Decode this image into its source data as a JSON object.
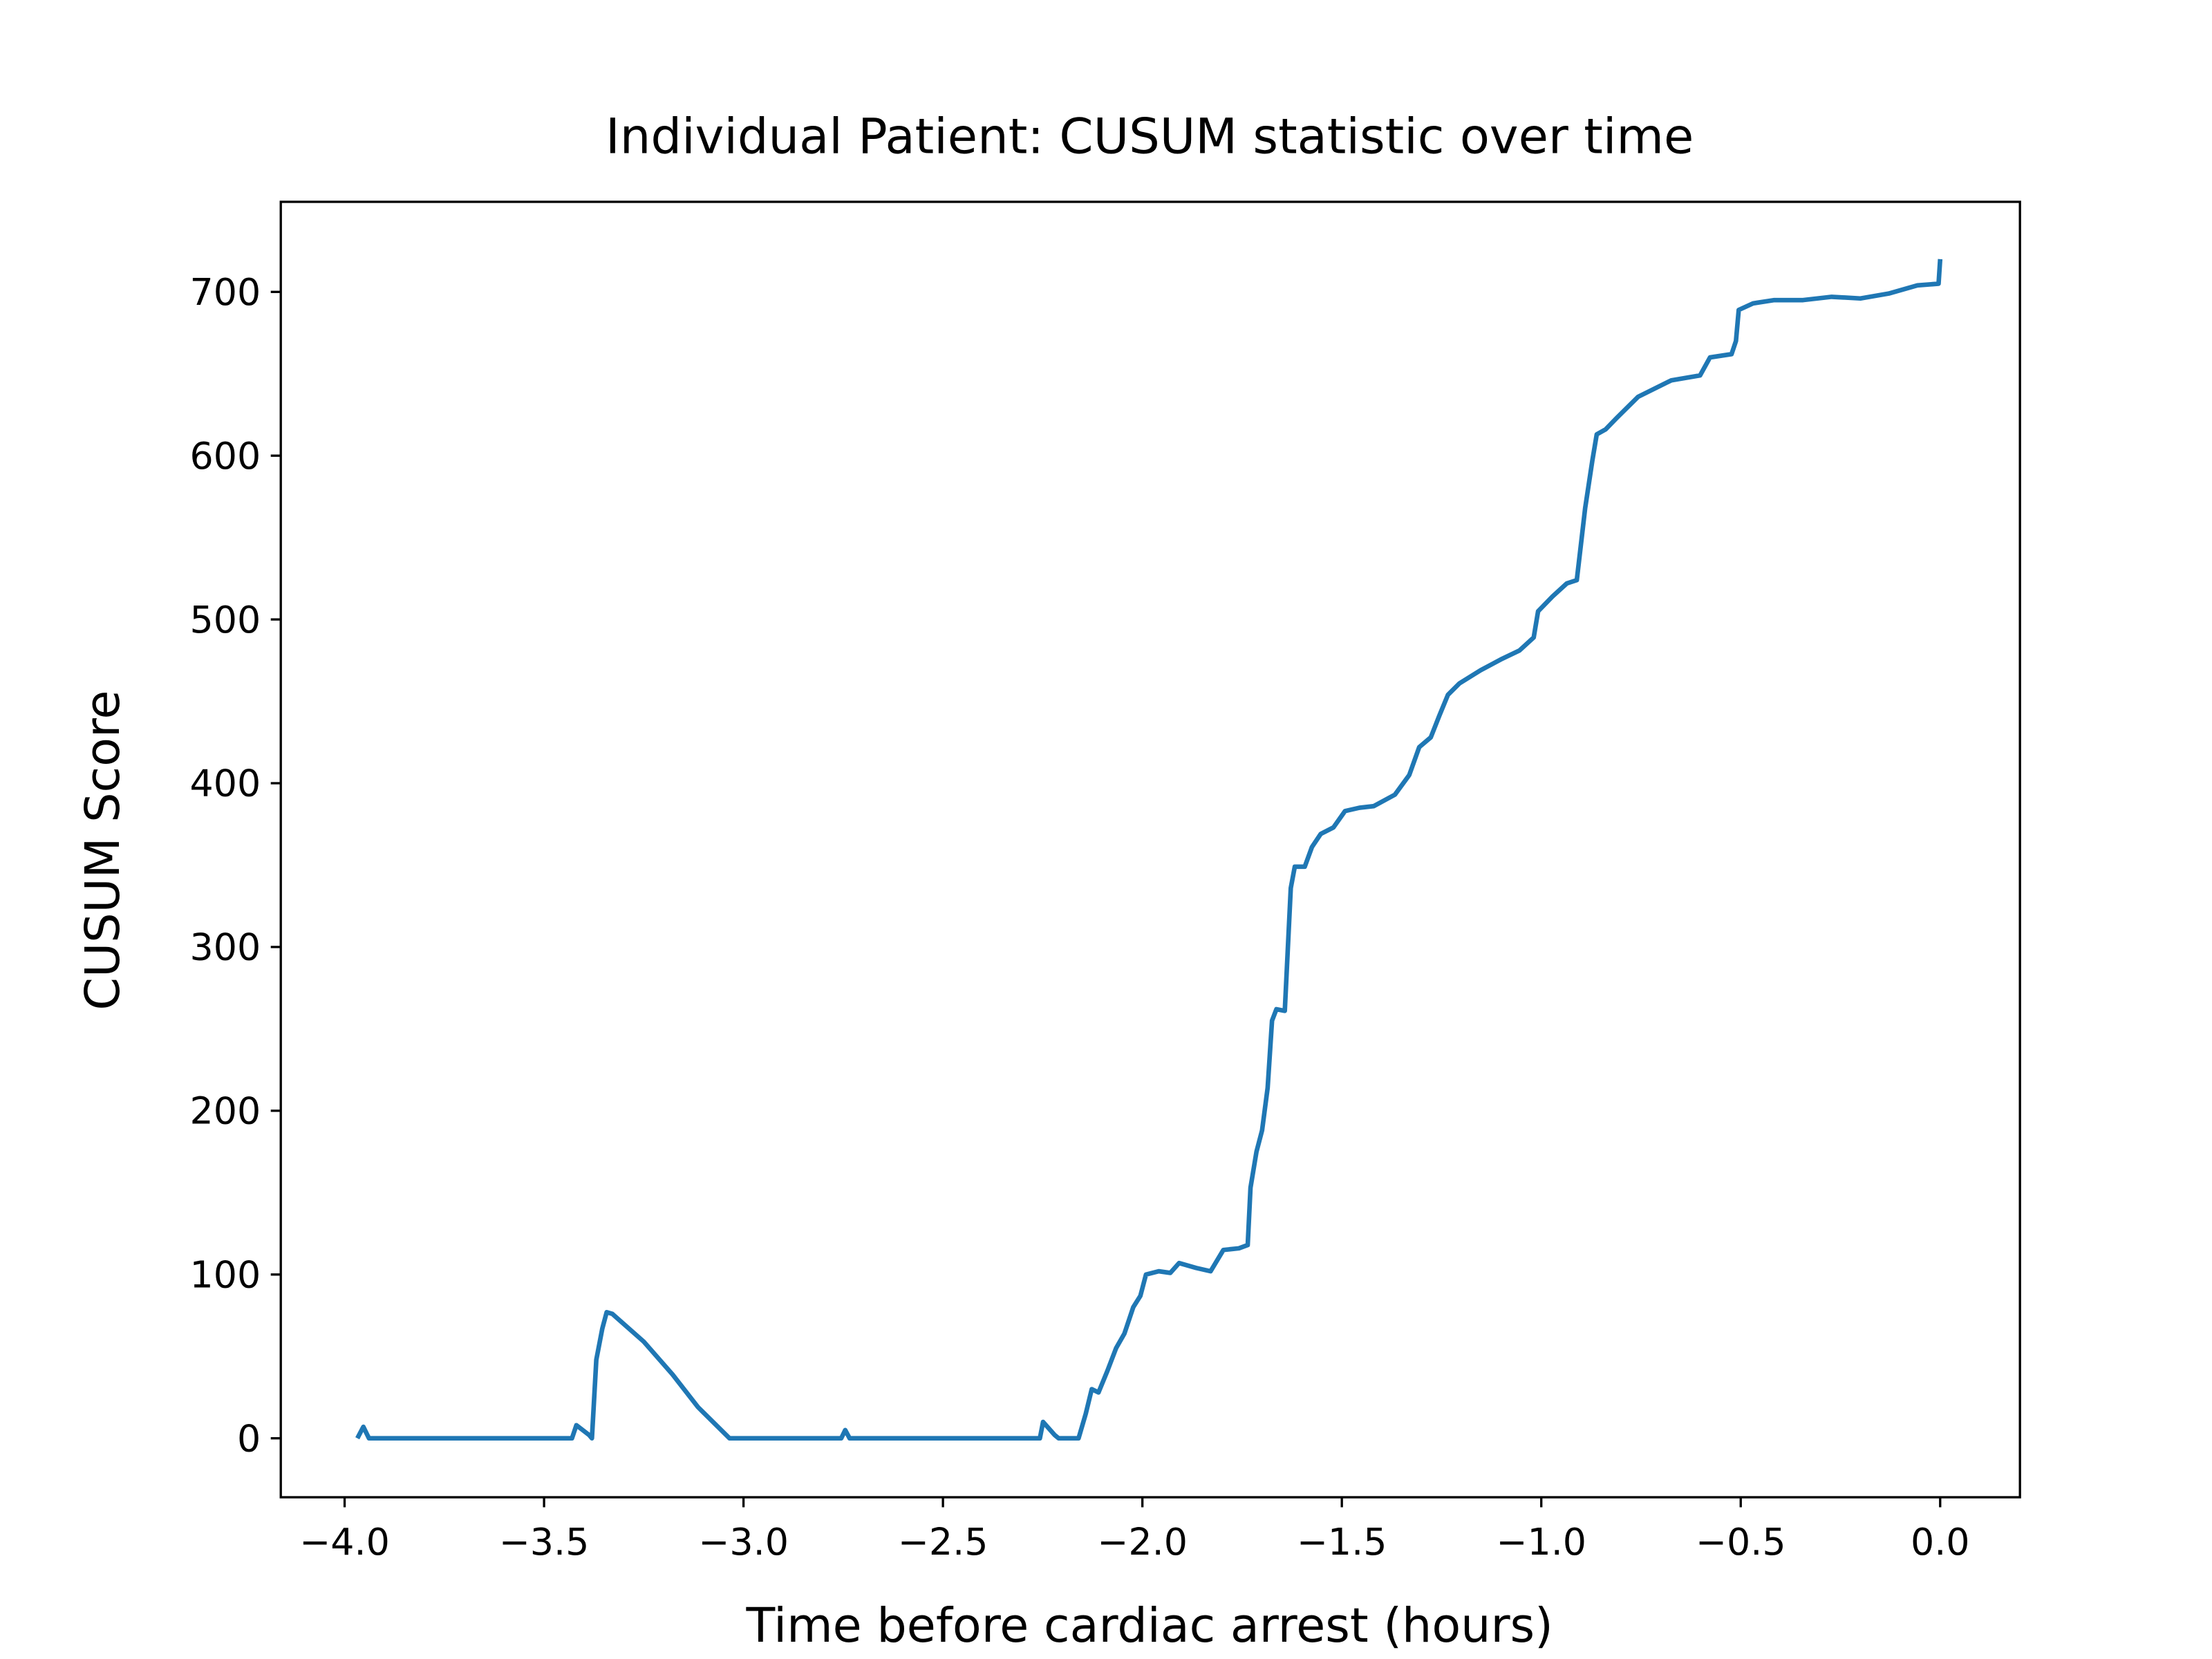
{
  "chart_data": {
    "type": "line",
    "title": "Individual Patient: CUSUM statistic over time",
    "xlabel": "Time before cardiac arrest (hours)",
    "ylabel": "CUSUM Score",
    "x": [
      -3.968,
      -3.953,
      -3.939,
      -3.43,
      -3.419,
      -3.387,
      -3.38,
      -3.369,
      -3.354,
      -3.343,
      -3.329,
      -3.25,
      -3.178,
      -3.114,
      -3.035,
      -2.755,
      -2.745,
      -2.734,
      -2.257,
      -2.249,
      -2.22,
      -2.21,
      -2.16,
      -2.142,
      -2.127,
      -2.11,
      -2.088,
      -2.066,
      -2.045,
      -2.023,
      -2.005,
      -1.991,
      -1.959,
      -1.93,
      -1.908,
      -1.865,
      -1.829,
      -1.797,
      -1.758,
      -1.736,
      -1.729,
      -1.714,
      -1.7,
      -1.686,
      -1.675,
      -1.664,
      -1.643,
      -1.628,
      -1.618,
      -1.593,
      -1.575,
      -1.553,
      -1.521,
      -1.492,
      -1.456,
      -1.42,
      -1.367,
      -1.331,
      -1.306,
      -1.277,
      -1.256,
      -1.234,
      -1.205,
      -1.152,
      -1.098,
      -1.055,
      -1.019,
      -1.008,
      -0.972,
      -0.936,
      -0.911,
      -0.89,
      -0.872,
      -0.861,
      -0.839,
      -0.811,
      -0.757,
      -0.674,
      -0.602,
      -0.577,
      -0.523,
      -0.512,
      -0.505,
      -0.469,
      -0.416,
      -0.344,
      -0.272,
      -0.2,
      -0.129,
      -0.057,
      -0.004,
      0.0
    ],
    "series": [
      {
        "name": "CUSUM",
        "color": "#1f77b4",
        "values": [
          0,
          7,
          0,
          0,
          8,
          2,
          0,
          48,
          67,
          77,
          76,
          59,
          39,
          19,
          0,
          0,
          5,
          0,
          0,
          10,
          2,
          0,
          0,
          15,
          30,
          28,
          41,
          55,
          64,
          80,
          87,
          100,
          102,
          101,
          107,
          104,
          102,
          115,
          116,
          118,
          153,
          175,
          188,
          214,
          255,
          262,
          261,
          336,
          349,
          349,
          361,
          369,
          373,
          383,
          385,
          386,
          393,
          405,
          422,
          428,
          441,
          454,
          461,
          469,
          476,
          481,
          489,
          505,
          514,
          522,
          524,
          568,
          597,
          613,
          616,
          623,
          636,
          646,
          649,
          660,
          662,
          670,
          689,
          693,
          695,
          695,
          697,
          696,
          699,
          704,
          705,
          720
        ]
      }
    ],
    "xlim": [
      -4.16,
      0.2
    ],
    "ylim": [
      -36,
      755
    ],
    "xticks": [
      {
        "value": -4.0,
        "label": "−4.0"
      },
      {
        "value": -3.5,
        "label": "−3.5"
      },
      {
        "value": -3.0,
        "label": "−3.0"
      },
      {
        "value": -2.5,
        "label": "−2.5"
      },
      {
        "value": -2.0,
        "label": "−2.0"
      },
      {
        "value": -1.5,
        "label": "−1.5"
      },
      {
        "value": -1.0,
        "label": "−1.0"
      },
      {
        "value": -0.5,
        "label": "−0.5"
      },
      {
        "value": 0.0,
        "label": "0.0"
      }
    ],
    "yticks": [
      0,
      100,
      200,
      300,
      400,
      500,
      600,
      700
    ],
    "grid": false
  }
}
